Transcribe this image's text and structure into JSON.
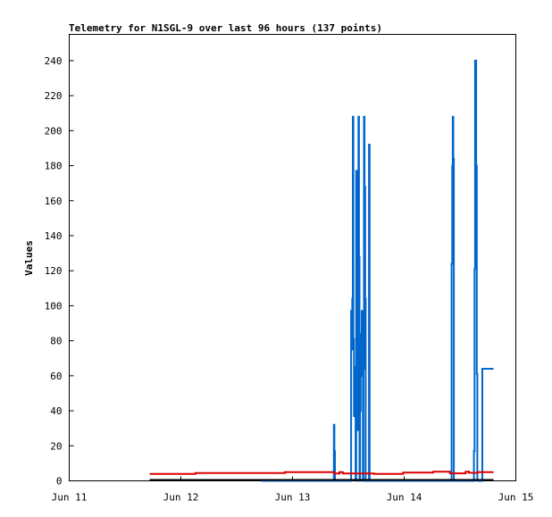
{
  "chart_data": {
    "type": "line",
    "title": "Telemetry for N1SGL-9 over last 96 hours (137 points)",
    "ylabel": "Values",
    "xlabel": "",
    "ylim": [
      0,
      255
    ],
    "xlim": [
      0,
      4
    ],
    "x_ticks": [
      {
        "value": 0,
        "label": "Jun 11"
      },
      {
        "value": 1,
        "label": "Jun 12"
      },
      {
        "value": 2,
        "label": "Jun 13"
      },
      {
        "value": 3,
        "label": "Jun 14"
      },
      {
        "value": 4,
        "label": "Jun 15"
      }
    ],
    "y_ticks": [
      0,
      20,
      40,
      60,
      80,
      100,
      120,
      140,
      160,
      180,
      200,
      220,
      240
    ],
    "grid": false,
    "series": [
      {
        "color": "#0066cc",
        "step": true,
        "points": [
          [
            1.72,
            0
          ],
          [
            2.36,
            0
          ],
          [
            2.37,
            32
          ],
          [
            2.375,
            17
          ],
          [
            2.38,
            0
          ],
          [
            2.52,
            0
          ],
          [
            2.525,
            97
          ],
          [
            2.53,
            75
          ],
          [
            2.535,
            104
          ],
          [
            2.54,
            208
          ],
          [
            2.545,
            81
          ],
          [
            2.55,
            37
          ],
          [
            2.555,
            65
          ],
          [
            2.56,
            56
          ],
          [
            2.565,
            0
          ],
          [
            2.57,
            177
          ],
          [
            2.575,
            128
          ],
          [
            2.58,
            72
          ],
          [
            2.585,
            29
          ],
          [
            2.59,
            208
          ],
          [
            2.595,
            128
          ],
          [
            2.6,
            0
          ],
          [
            2.605,
            40
          ],
          [
            2.61,
            69
          ],
          [
            2.615,
            84
          ],
          [
            2.62,
            97
          ],
          [
            2.625,
            60
          ],
          [
            2.63,
            0
          ],
          [
            2.635,
            64
          ],
          [
            2.64,
            208
          ],
          [
            2.645,
            168
          ],
          [
            2.65,
            104
          ],
          [
            2.655,
            0
          ],
          [
            2.68,
            0
          ],
          [
            2.685,
            192
          ],
          [
            2.69,
            0
          ],
          [
            3.42,
            0
          ],
          [
            3.425,
            124
          ],
          [
            3.43,
            180
          ],
          [
            3.435,
            208
          ],
          [
            3.44,
            184
          ],
          [
            3.445,
            0
          ],
          [
            3.62,
            0
          ],
          [
            3.625,
            17
          ],
          [
            3.63,
            121
          ],
          [
            3.635,
            240
          ],
          [
            3.64,
            240
          ],
          [
            3.645,
            180
          ],
          [
            3.65,
            61
          ],
          [
            3.655,
            0
          ],
          [
            3.695,
            0
          ],
          [
            3.7,
            64
          ],
          [
            3.8,
            64
          ]
        ]
      },
      {
        "color": "#dd0000",
        "step": true,
        "points": [
          [
            0.72,
            4
          ],
          [
            1.12,
            4
          ],
          [
            1.13,
            4.5
          ],
          [
            1.92,
            4.5
          ],
          [
            1.93,
            5
          ],
          [
            2.36,
            5
          ],
          [
            2.37,
            4.2
          ],
          [
            2.42,
            5
          ],
          [
            2.45,
            4.2
          ],
          [
            2.72,
            4.2
          ],
          [
            2.73,
            4
          ],
          [
            2.98,
            4
          ],
          [
            2.99,
            4.7
          ],
          [
            3.25,
            4.7
          ],
          [
            3.26,
            5.2
          ],
          [
            3.4,
            5.2
          ],
          [
            3.41,
            4.3
          ],
          [
            3.54,
            4.3
          ],
          [
            3.55,
            5.2
          ],
          [
            3.58,
            4.6
          ],
          [
            3.65,
            4.6
          ],
          [
            3.66,
            5
          ],
          [
            3.8,
            5
          ]
        ]
      },
      {
        "color": "#000000",
        "step": true,
        "points": [
          [
            0.72,
            0.5
          ],
          [
            3.8,
            0.5
          ]
        ]
      }
    ]
  }
}
